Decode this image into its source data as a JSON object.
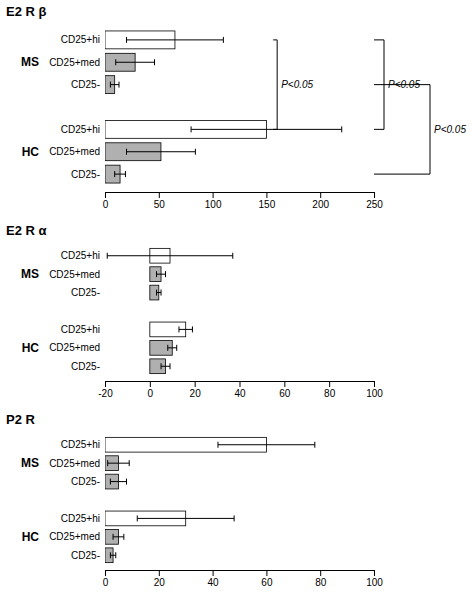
{
  "chart_data": [
    {
      "type": "bar",
      "orientation": "horizontal",
      "title": "E2 R β",
      "categories": [
        "CD25+hi",
        "CD25+med",
        "CD25-"
      ],
      "series": [
        {
          "name": "MS",
          "colors": [
            "white",
            "#b0b0b0",
            "#b0b0b0"
          ],
          "values": [
            65,
            28,
            9
          ],
          "errors": [
            45,
            18,
            4
          ]
        },
        {
          "name": "HC",
          "colors": [
            "white",
            "#b0b0b0",
            "#b0b0b0"
          ],
          "values": [
            150,
            52,
            14
          ],
          "errors": [
            70,
            32,
            5
          ]
        }
      ],
      "xlim": [
        0,
        250
      ],
      "xticks": [
        0,
        50,
        100,
        150,
        200,
        250
      ],
      "annotations": [
        {
          "text": "P<0.05",
          "category": "CD25+hi",
          "x": 160
        },
        {
          "text": "P<0.05",
          "category": "CD25+hi"
        },
        {
          "text": "P<0.05",
          "category": "CD25-"
        }
      ]
    },
    {
      "type": "bar",
      "orientation": "horizontal",
      "title": "E2 R α",
      "categories": [
        "CD25+hi",
        "CD25+med",
        "CD25-"
      ],
      "series": [
        {
          "name": "MS",
          "colors": [
            "white",
            "#b0b0b0",
            "#b0b0b0"
          ],
          "values": [
            9,
            5,
            4
          ],
          "errors": [
            28,
            2,
            1
          ]
        },
        {
          "name": "HC",
          "colors": [
            "white",
            "#b0b0b0",
            "#b0b0b0"
          ],
          "values": [
            16,
            10,
            7
          ],
          "errors": [
            3,
            2,
            2
          ]
        }
      ],
      "xlim": [
        -20,
        100
      ],
      "xticks": [
        -20,
        0,
        20,
        40,
        60,
        80,
        100
      ]
    },
    {
      "type": "bar",
      "orientation": "horizontal",
      "title": "P2 R",
      "categories": [
        "CD25+hi",
        "CD25+med",
        "CD25-"
      ],
      "series": [
        {
          "name": "MS",
          "colors": [
            "white",
            "#b0b0b0",
            "#b0b0b0"
          ],
          "values": [
            60,
            5,
            5
          ],
          "errors": [
            18,
            4,
            3
          ]
        },
        {
          "name": "HC",
          "colors": [
            "white",
            "#b0b0b0",
            "#b0b0b0"
          ],
          "values": [
            30,
            5,
            3
          ],
          "errors": [
            18,
            2,
            1
          ]
        }
      ],
      "xlim": [
        0,
        100
      ],
      "xticks": [
        0,
        20,
        40,
        60,
        80,
        100
      ]
    }
  ]
}
